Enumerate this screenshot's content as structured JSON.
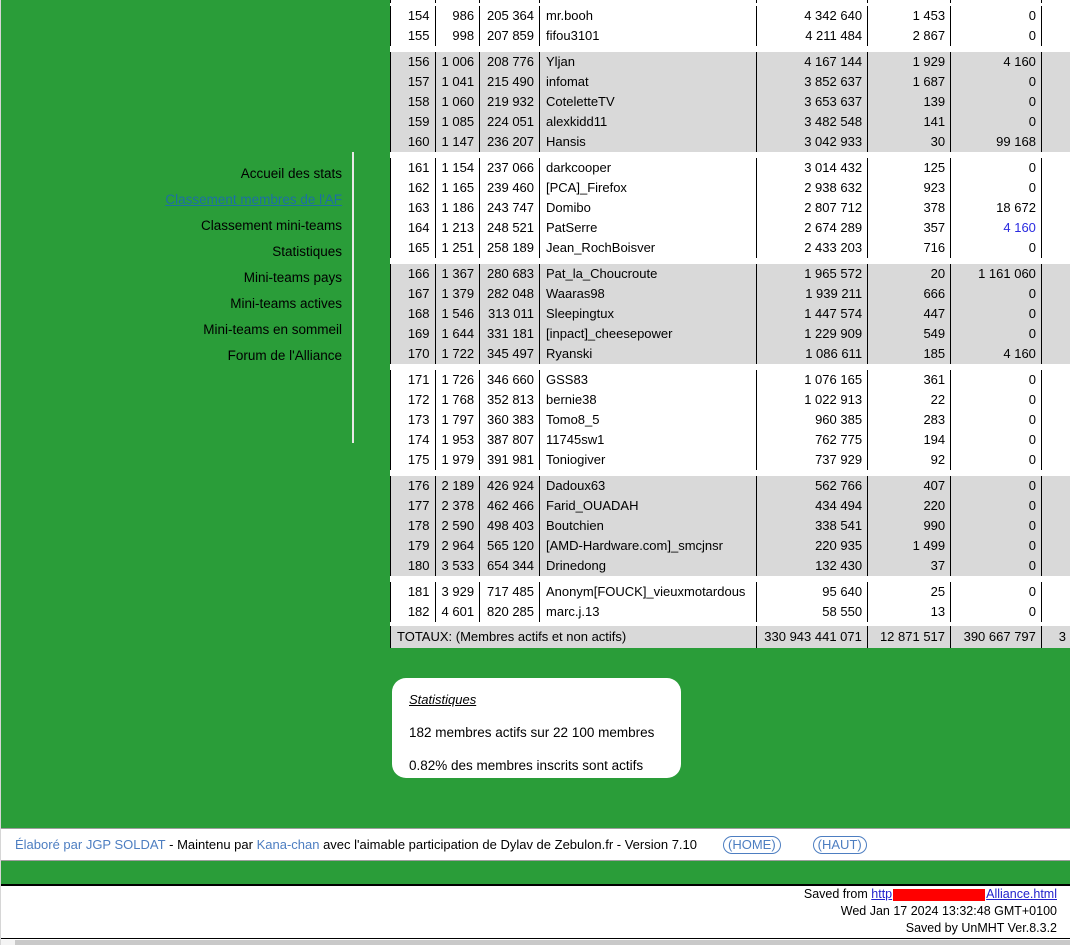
{
  "colors": {
    "green_background": "#2a9d39",
    "row_gray": "#d9d9d9",
    "table_link_blue": "#2b2be0",
    "menu_active_link": "#1d6fa5",
    "footer_link_blue": "#4d7ec1",
    "save_link_blue": "#2222cc",
    "redaction_red": "#ff0000"
  },
  "sidebar": {
    "items": [
      {
        "label": "Accueil des stats",
        "active": false
      },
      {
        "label": "Classement membres de l'AF",
        "active": true
      },
      {
        "label": "Classement mini-teams",
        "active": false
      },
      {
        "label": "Statistiques",
        "active": false
      },
      {
        "label": "Mini-teams pays",
        "active": false
      },
      {
        "label": "Mini-teams actives",
        "active": false
      },
      {
        "label": "Mini-teams en sommeil",
        "active": false
      },
      {
        "label": "Forum de l'Alliance",
        "active": false
      }
    ]
  },
  "table": {
    "groups": [
      {
        "shaded": false,
        "rows": [
          {
            "cells": [
              "154",
              "986",
              "205 364",
              "mr.booh",
              "4 342 640",
              "1 453",
              "0",
              ""
            ]
          },
          {
            "cells": [
              "155",
              "998",
              "207 859",
              "fifou3101",
              "4 211 484",
              "2 867",
              "0",
              ""
            ]
          }
        ]
      },
      {
        "shaded": true,
        "rows": [
          {
            "cells": [
              "156",
              "1 006",
              "208 776",
              "Yljan",
              "4 167 144",
              "1 929",
              "4 160",
              ""
            ]
          },
          {
            "cells": [
              "157",
              "1 041",
              "215 490",
              "infomat",
              "3 852 637",
              "1 687",
              "0",
              ""
            ]
          },
          {
            "cells": [
              "158",
              "1 060",
              "219 932",
              "CoteletteTV",
              "3 653 637",
              "139",
              "0",
              ""
            ]
          },
          {
            "cells": [
              "159",
              "1 085",
              "224 051",
              "alexkidd11",
              "3 482 548",
              "141",
              "0",
              ""
            ]
          },
          {
            "cells": [
              "160",
              "1 147",
              "236 207",
              "Hansis",
              "3 042 933",
              "30",
              "99 168",
              ""
            ]
          }
        ]
      },
      {
        "shaded": false,
        "rows": [
          {
            "cells": [
              "161",
              "1 154",
              "237 066",
              "darkcooper",
              "3 014 432",
              "125",
              "0",
              ""
            ]
          },
          {
            "cells": [
              "162",
              "1 165",
              "239 460",
              "[PCA]_Firefox",
              "2 938 632",
              "923",
              "0",
              ""
            ]
          },
          {
            "cells": [
              "163",
              "1 186",
              "243 747",
              "Domibo",
              "2 807 712",
              "378",
              "18 672",
              ""
            ]
          },
          {
            "cells": [
              "164",
              "1 213",
              "248 521",
              "PatSerre",
              "2 674 289",
              "357",
              "4 160",
              ""
            ],
            "link_cells": [
              6
            ]
          },
          {
            "cells": [
              "165",
              "1 251",
              "258 189",
              "Jean_RochBoisver",
              "2 433 203",
              "716",
              "0",
              ""
            ]
          }
        ]
      },
      {
        "shaded": true,
        "rows": [
          {
            "cells": [
              "166",
              "1 367",
              "280 683",
              "Pat_la_Choucroute",
              "1 965 572",
              "20",
              "1 161 060",
              ""
            ]
          },
          {
            "cells": [
              "167",
              "1 379",
              "282 048",
              "Waaras98",
              "1 939 211",
              "666",
              "0",
              ""
            ]
          },
          {
            "cells": [
              "168",
              "1 546",
              "313 011",
              "Sleepingtux",
              "1 447 574",
              "447",
              "0",
              ""
            ]
          },
          {
            "cells": [
              "169",
              "1 644",
              "331 181",
              "[inpact]_cheesepower",
              "1 229 909",
              "549",
              "0",
              ""
            ]
          },
          {
            "cells": [
              "170",
              "1 722",
              "345 497",
              "Ryanski",
              "1 086 611",
              "185",
              "4 160",
              ""
            ]
          }
        ]
      },
      {
        "shaded": false,
        "rows": [
          {
            "cells": [
              "171",
              "1 726",
              "346 660",
              "GSS83",
              "1 076 165",
              "361",
              "0",
              ""
            ]
          },
          {
            "cells": [
              "172",
              "1 768",
              "352 813",
              "bernie38",
              "1 022 913",
              "22",
              "0",
              ""
            ]
          },
          {
            "cells": [
              "173",
              "1 797",
              "360 383",
              "Tomo8_5",
              "960 385",
              "283",
              "0",
              ""
            ]
          },
          {
            "cells": [
              "174",
              "1 953",
              "387 807",
              "11745sw1",
              "762 775",
              "194",
              "0",
              ""
            ]
          },
          {
            "cells": [
              "175",
              "1 979",
              "391 981",
              "Toniogiver",
              "737 929",
              "92",
              "0",
              ""
            ]
          }
        ]
      },
      {
        "shaded": true,
        "rows": [
          {
            "cells": [
              "176",
              "2 189",
              "426 924",
              "Dadoux63",
              "562 766",
              "407",
              "0",
              ""
            ]
          },
          {
            "cells": [
              "177",
              "2 378",
              "462 466",
              "Farid_OUADAH",
              "434 494",
              "220",
              "0",
              ""
            ]
          },
          {
            "cells": [
              "178",
              "2 590",
              "498 403",
              "Boutchien",
              "338 541",
              "990",
              "0",
              ""
            ]
          },
          {
            "cells": [
              "179",
              "2 964",
              "565 120",
              "[AMD-Hardware.com]_smcjnsr",
              "220 935",
              "1 499",
              "0",
              ""
            ]
          },
          {
            "cells": [
              "180",
              "3 533",
              "654 344",
              "Drinedong",
              "132 430",
              "37",
              "0",
              ""
            ]
          }
        ]
      },
      {
        "shaded": false,
        "rows": [
          {
            "cells": [
              "181",
              "3 929",
              "717 485",
              "Anonym[FOUCK]_vieuxmotardous",
              "95 640",
              "25",
              "0",
              ""
            ]
          },
          {
            "cells": [
              "182",
              "4 601",
              "820 285",
              "marc.j.13",
              "58 550",
              "13",
              "0",
              ""
            ]
          }
        ]
      }
    ],
    "totals": {
      "label": "TOTAUX: (Membres actifs et non actifs)",
      "values": [
        "330 943 441 071",
        "12 871 517",
        "390 667 797"
      ],
      "clipped_value": "3"
    }
  },
  "stats_box": {
    "title": "Statistiques",
    "line1": "182 membres actifs sur 22 100 membres",
    "line2": "0.82% des membres inscrits sont actifs"
  },
  "footer": {
    "link1": "Élaboré par JGP SOLDAT",
    "mid1": " - Maintenu par ",
    "link2": "Kana-chan",
    "mid2": " avec l'aimable participation de Dylav de Zebulon.fr - Version 7.10",
    "home_label": "(HOME)",
    "haut_label": "(HAUT)"
  },
  "savebar": {
    "prefix": "Saved from ",
    "url_start": "http",
    "url_end": "Alliance.html",
    "line2": "Wed Jan 17 2024 13:32:48 GMT+0100",
    "line3": "Saved by UnMHT Ver.8.3.2"
  }
}
